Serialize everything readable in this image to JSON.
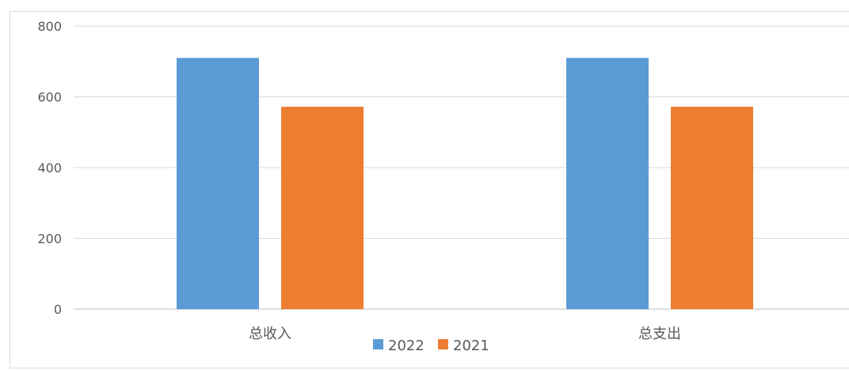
{
  "chart_data": {
    "type": "bar",
    "title": "",
    "xlabel": "",
    "ylabel": "",
    "categories": [
      "总收入",
      "总支出"
    ],
    "series": [
      {
        "name": "2022",
        "values": [
          710,
          710
        ],
        "color": "#5B9BD5"
      },
      {
        "name": "2021",
        "values": [
          572,
          572
        ],
        "color": "#ED7D31"
      }
    ],
    "ylim": [
      0,
      800
    ],
    "yticks": [
      0,
      200,
      400,
      600,
      800
    ],
    "grid": true,
    "legend": "bottom"
  }
}
